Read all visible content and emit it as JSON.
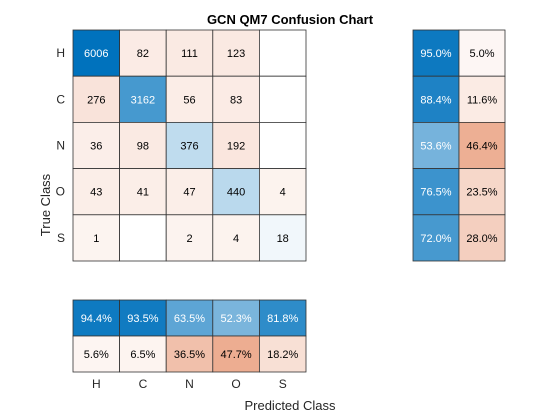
{
  "chart_data": {
    "type": "heatmap",
    "title": "GCN QM7 Confusion Chart",
    "xlabel": "Predicted Class",
    "ylabel": "True Class",
    "classes": [
      "H",
      "C",
      "N",
      "O",
      "S"
    ],
    "matrix": [
      [
        6006,
        82,
        111,
        123,
        null
      ],
      [
        276,
        3162,
        56,
        83,
        null
      ],
      [
        36,
        98,
        376,
        192,
        null
      ],
      [
        43,
        41,
        47,
        440,
        4
      ],
      [
        1,
        null,
        2,
        4,
        18
      ]
    ],
    "row_summary": {
      "correct": [
        "95.0%",
        "88.4%",
        "53.6%",
        "76.5%",
        "72.0%"
      ],
      "incorrect": [
        "5.0%",
        "11.6%",
        "46.4%",
        "23.5%",
        "28.0%"
      ]
    },
    "column_summary": {
      "correct": [
        "94.4%",
        "93.5%",
        "63.5%",
        "52.3%",
        "81.8%"
      ],
      "incorrect": [
        "5.6%",
        "6.5%",
        "36.5%",
        "47.7%",
        "18.2%"
      ]
    },
    "colors": {
      "correct_max": "#0072BD",
      "incorrect_max": "#D95319",
      "light_text": "#ffffff",
      "dark_text": "#000000",
      "grid_line": "#333333"
    }
  }
}
